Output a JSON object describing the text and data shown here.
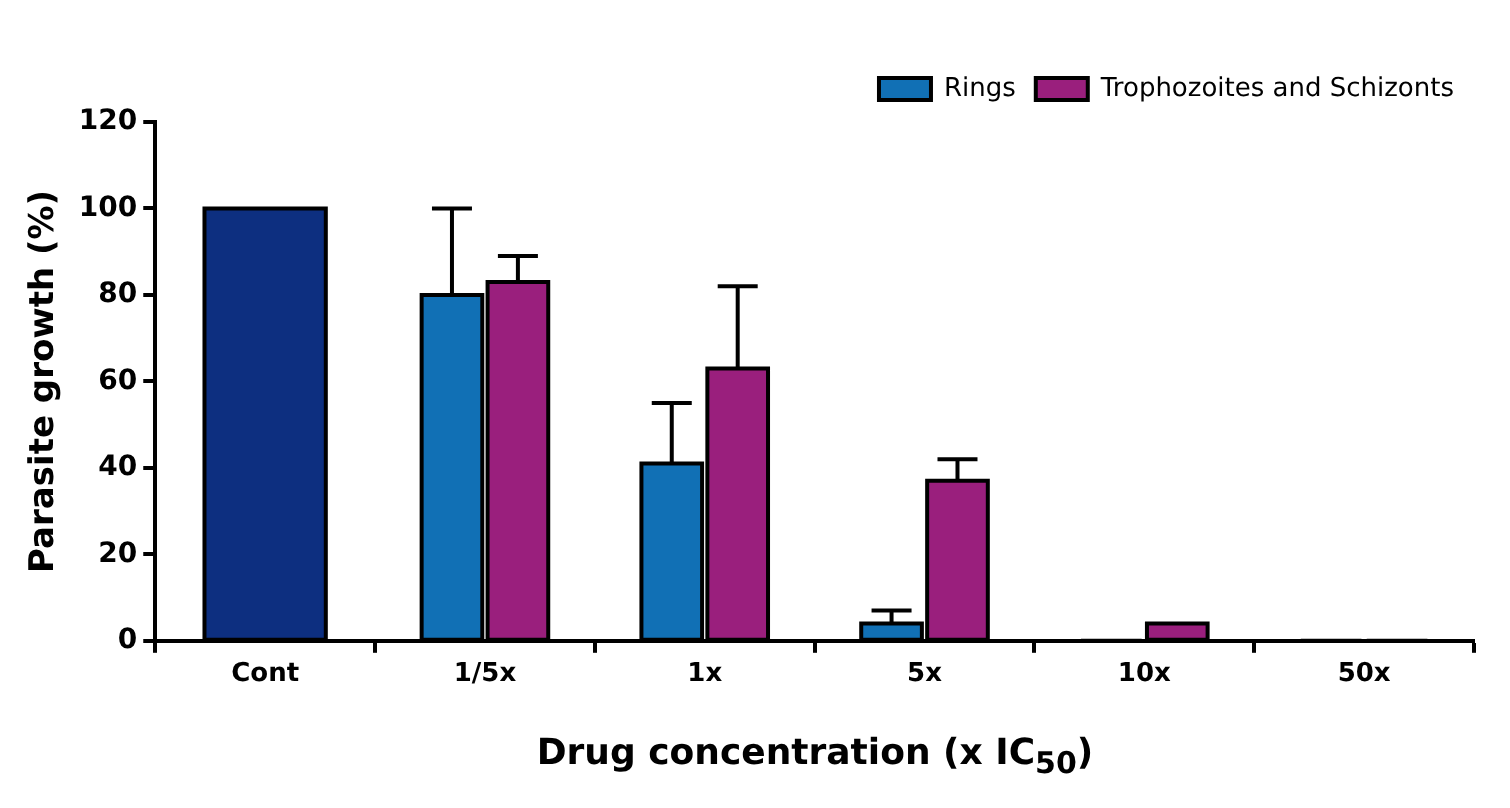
{
  "chart_data": {
    "type": "bar",
    "xlabel": "Drug concentration (x IC$_{50}$)",
    "ylabel": "Parasite growth (%)",
    "categories": [
      "Cont",
      "1/5x",
      "1x",
      "5x",
      "10x",
      "50x"
    ],
    "series": [
      {
        "name": "Rings",
        "color": "#1170b5",
        "colors": [
          "#0d2f80",
          "#1170b5",
          "#1170b5",
          "#1170b5",
          "#1170b5",
          "#1170b5"
        ],
        "values": [
          100,
          80,
          41,
          4,
          0,
          0
        ],
        "errors": [
          null,
          [
            80,
            100
          ],
          [
            41,
            55
          ],
          [
            4,
            7
          ],
          null,
          null
        ]
      },
      {
        "name": "Trophozoites and Schizonts",
        "color": "#9a1f7d",
        "values": [
          null,
          83,
          63,
          37,
          4,
          0
        ],
        "errors": [
          null,
          [
            83,
            89
          ],
          [
            63,
            82
          ],
          [
            37,
            42
          ],
          null,
          null
        ]
      }
    ],
    "ylim": [
      0,
      120
    ],
    "yticks": [
      0,
      20,
      40,
      60,
      80,
      100,
      120
    ],
    "grid": false,
    "legend": "top right"
  }
}
